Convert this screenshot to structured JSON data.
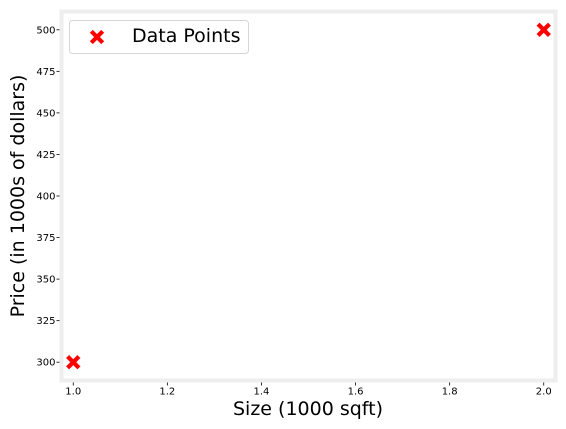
{
  "chart_data": {
    "type": "scatter",
    "xlabel": "Size (1000 sqft)",
    "ylabel": "Price (in 1000s of dollars)",
    "xlim": [
      0.975,
      2.025
    ],
    "ylim": [
      289,
      511
    ],
    "xticks": [
      1.0,
      1.2,
      1.4,
      1.6,
      1.8,
      2.0
    ],
    "xtick_labels": [
      "1.0",
      "1.2",
      "1.4",
      "1.6",
      "1.8",
      "2.0"
    ],
    "yticks": [
      300,
      325,
      350,
      375,
      400,
      425,
      450,
      475,
      500
    ],
    "ytick_labels": [
      "300",
      "325",
      "350",
      "375",
      "400",
      "425",
      "450",
      "475",
      "500"
    ],
    "grid": false,
    "legend_position": "top-left",
    "series": [
      {
        "name": "Data Points",
        "marker": "x",
        "color": "#ff0000",
        "x": [
          1.0,
          2.0
        ],
        "y": [
          300,
          500
        ]
      }
    ]
  }
}
